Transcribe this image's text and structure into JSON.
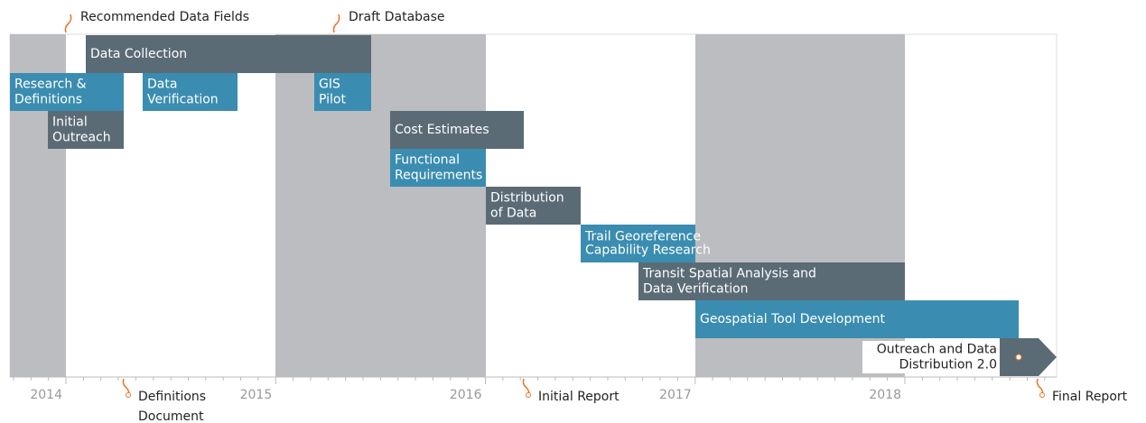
{
  "axis": {
    "years": [
      "2014",
      "2015",
      "2016",
      "2017",
      "2018"
    ]
  },
  "tasks": [
    {
      "lines": [
        "Data Collection"
      ]
    },
    {
      "lines": [
        "Research &",
        "Definitions"
      ]
    },
    {
      "lines": [
        "Initial",
        "Outreach"
      ]
    },
    {
      "lines": [
        "Data",
        "Verification"
      ]
    },
    {
      "lines": [
        "GIS",
        "Pilot"
      ]
    },
    {
      "lines": [
        "Cost Estimates"
      ]
    },
    {
      "lines": [
        "Functional",
        "Requirements"
      ]
    },
    {
      "lines": [
        "Distribution",
        "of Data"
      ]
    },
    {
      "lines": [
        "Trail Georeference",
        "Capability Research"
      ]
    },
    {
      "lines": [
        "Transit Spatial Analysis and",
        "Data Verification"
      ]
    },
    {
      "lines": [
        "Geospatial Tool Development"
      ]
    },
    {
      "lines": [
        "Outreach and Data",
        "Distribution 2.0"
      ]
    }
  ],
  "milestones": [
    {
      "lines": [
        "Recommended Data Fields"
      ]
    },
    {
      "lines": [
        "Draft Database"
      ]
    },
    {
      "lines": [
        "Definitions",
        "Document"
      ]
    },
    {
      "lines": [
        "Initial Report"
      ]
    },
    {
      "lines": [
        "Final Report"
      ]
    }
  ]
}
